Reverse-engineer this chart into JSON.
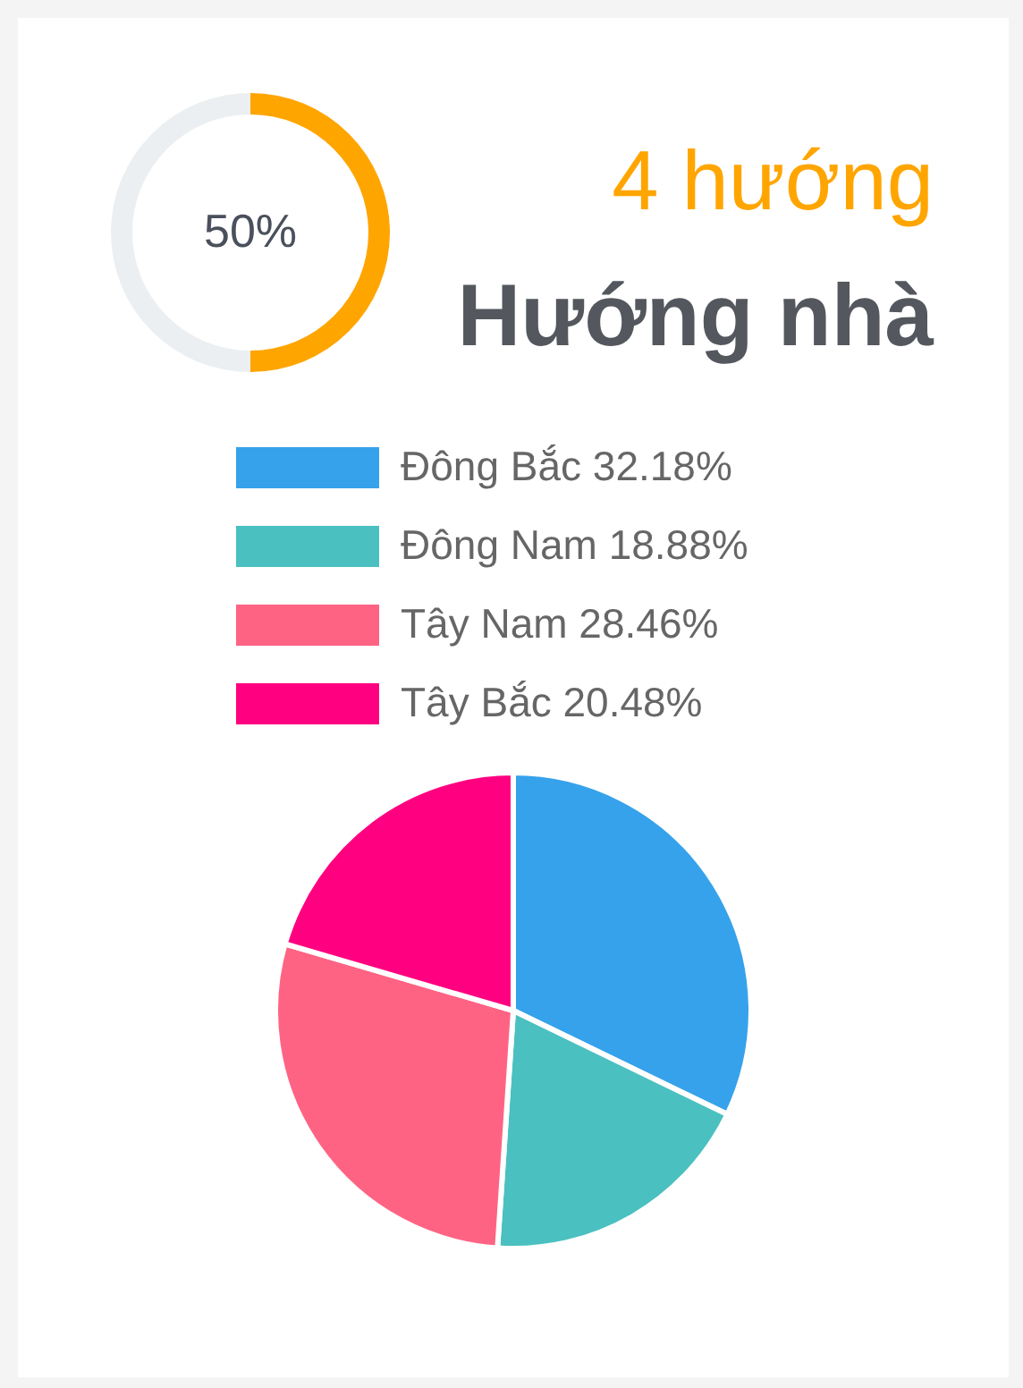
{
  "chart_data": [
    {
      "type": "donut",
      "title": "4 hướng",
      "subtitle": "Hướng nhà",
      "categories": [
        null,
        null
      ],
      "values": [
        50,
        50
      ],
      "colors": [
        "#ffa500",
        "#eceff1"
      ],
      "annotations": [
        "50%"
      ]
    },
    {
      "type": "pie",
      "categories": [
        "Đông Bắc 32.18%",
        "Đông Nam 18.88%",
        "Tây Nam 28.46%",
        "Tây Bắc 20.48%"
      ],
      "values": [
        32.18,
        18.88,
        28.46,
        20.48
      ],
      "colors": [
        "#36a2eb",
        "#4bc0c0",
        "#ff6384",
        "#ff0080"
      ],
      "legend": "top"
    }
  ]
}
